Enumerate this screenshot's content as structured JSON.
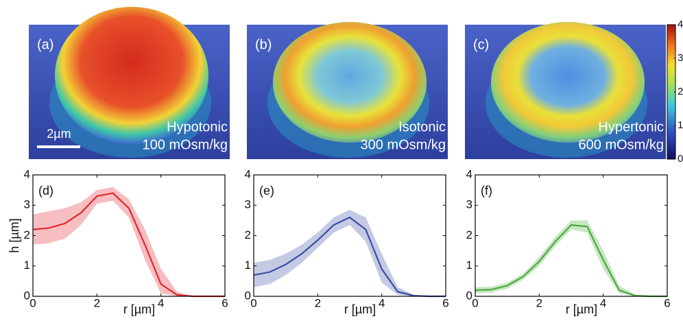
{
  "panels": [
    {
      "label": "(a)",
      "condition": "Hypotonic",
      "osmolality": "100 mOsm/kg",
      "scale_bar": "2µm"
    },
    {
      "label": "(b)",
      "condition": "Isotonic",
      "osmolality": "300 mOsm/kg"
    },
    {
      "label": "(c)",
      "condition": "Hypertonic",
      "osmolality": "600 mOsm/kg"
    }
  ],
  "colorbar": {
    "lim": [
      0,
      4
    ],
    "ticks": [
      0,
      1,
      2,
      3,
      4
    ]
  },
  "chart_data": [
    {
      "type": "line",
      "label": "(d)",
      "xlabel": "r [µm]",
      "ylabel": "h [µm]",
      "xlim": [
        0,
        6
      ],
      "ylim": [
        0,
        4
      ],
      "xticks": [
        0,
        2,
        4,
        6
      ],
      "yticks": [
        0,
        1,
        2,
        3,
        4
      ],
      "x": [
        0,
        0.5,
        1,
        1.5,
        2,
        2.5,
        3,
        3.5,
        4,
        4.5,
        5,
        5.5,
        6
      ],
      "series": [
        {
          "color": "#e0282e",
          "values": [
            2.2,
            2.25,
            2.4,
            2.75,
            3.3,
            3.4,
            2.9,
            1.7,
            0.4,
            0.05,
            0,
            0,
            0
          ],
          "upper": [
            2.7,
            2.8,
            2.9,
            3.1,
            3.5,
            3.6,
            3.2,
            2.2,
            0.9,
            0.15,
            0,
            0,
            0
          ],
          "lower": [
            1.7,
            1.75,
            1.9,
            2.35,
            3.05,
            3.15,
            2.6,
            1.2,
            0.1,
            0,
            0,
            0,
            0
          ]
        }
      ]
    },
    {
      "type": "line",
      "label": "(e)",
      "xlabel": "r [µm]",
      "xlim": [
        0,
        6
      ],
      "ylim": [
        0,
        4
      ],
      "xticks": [
        0,
        2,
        4,
        6
      ],
      "yticks": [
        0,
        1,
        2,
        3,
        4
      ],
      "x": [
        0,
        0.5,
        1,
        1.5,
        2,
        2.5,
        3,
        3.5,
        4,
        4.5,
        5,
        5.5,
        6
      ],
      "series": [
        {
          "color": "#3a4fa3",
          "values": [
            0.7,
            0.8,
            1.05,
            1.4,
            1.85,
            2.35,
            2.6,
            2.2,
            0.9,
            0.15,
            0.02,
            0,
            0
          ],
          "upper": [
            1.1,
            1.2,
            1.4,
            1.7,
            2.1,
            2.6,
            2.85,
            2.6,
            1.4,
            0.3,
            0.05,
            0,
            0
          ],
          "lower": [
            0.3,
            0.4,
            0.7,
            1.1,
            1.6,
            2.1,
            2.35,
            1.8,
            0.45,
            0.05,
            0,
            0,
            0
          ]
        }
      ]
    },
    {
      "type": "line",
      "label": "(f)",
      "xlabel": "r [µm]",
      "xlim": [
        0,
        6
      ],
      "ylim": [
        0,
        4
      ],
      "xticks": [
        0,
        2,
        4,
        6
      ],
      "yticks": [
        0,
        1,
        2,
        3,
        4
      ],
      "x": [
        0,
        0.5,
        1,
        1.5,
        2,
        2.5,
        3,
        3.5,
        4,
        4.5,
        5,
        5.5,
        6
      ],
      "series": [
        {
          "color": "#4aab3a",
          "values": [
            0.2,
            0.22,
            0.35,
            0.65,
            1.15,
            1.8,
            2.35,
            2.3,
            1.2,
            0.2,
            0.02,
            0,
            0
          ],
          "upper": [
            0.3,
            0.32,
            0.45,
            0.75,
            1.3,
            1.95,
            2.5,
            2.5,
            1.5,
            0.35,
            0.05,
            0,
            0
          ],
          "lower": [
            0.1,
            0.12,
            0.25,
            0.55,
            1.0,
            1.65,
            2.2,
            2.1,
            0.9,
            0.1,
            0,
            0,
            0
          ]
        }
      ]
    }
  ]
}
